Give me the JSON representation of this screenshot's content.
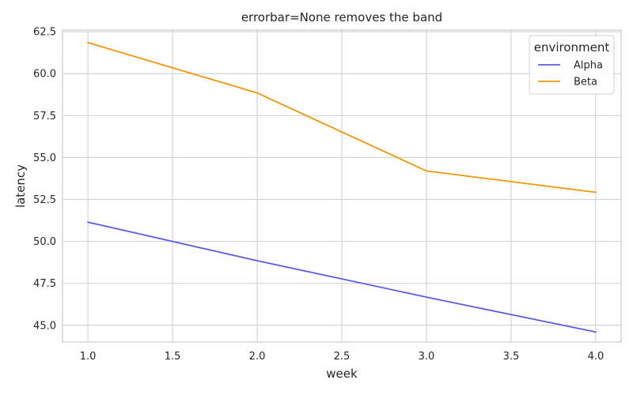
{
  "chart_data": {
    "type": "line",
    "title": "errorbar=None removes the band",
    "xlabel": "week",
    "ylabel": "latency",
    "x": [
      1.0,
      2.0,
      3.0,
      4.0
    ],
    "xlim": [
      0.85,
      4.15
    ],
    "ylim": [
      44.0,
      62.6
    ],
    "xticks": [
      1.0,
      1.5,
      2.0,
      2.5,
      3.0,
      3.5,
      4.0
    ],
    "xtick_labels": [
      "1.0",
      "1.5",
      "2.0",
      "2.5",
      "3.0",
      "3.5",
      "4.0"
    ],
    "yticks": [
      45.0,
      47.5,
      50.0,
      52.5,
      55.0,
      57.5,
      60.0,
      62.5
    ],
    "ytick_labels": [
      "45.0",
      "47.5",
      "50.0",
      "52.5",
      "55.0",
      "57.5",
      "60.0",
      "62.5"
    ],
    "grid": true,
    "legend": {
      "title": "environment",
      "placement": "top-right"
    },
    "series": [
      {
        "name": "Alpha",
        "color": "#5b5ee0",
        "values": [
          51.15,
          48.85,
          46.68,
          44.6
        ]
      },
      {
        "name": "Beta",
        "color": "#f0960a",
        "values": [
          61.85,
          58.85,
          54.2,
          52.93
        ]
      }
    ]
  }
}
